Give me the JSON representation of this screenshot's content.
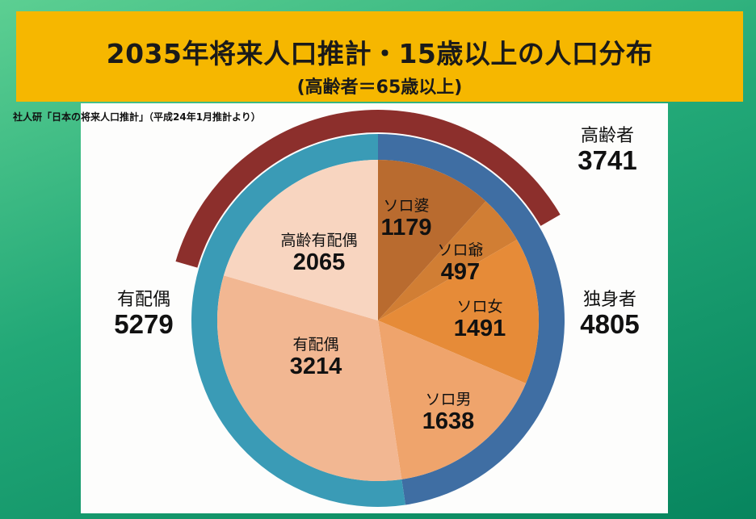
{
  "header": {
    "title": "2035年将来人口推計・15歳以上の人口分布",
    "subtitle": "(高齢者＝65歳以上)"
  },
  "source": "社人研「日本の将来人口推計」（平成24年1月推計より）",
  "chart_data": {
    "type": "pie",
    "title": "2035年将来人口推計・15歳以上の人口分布",
    "slices": [
      {
        "label": "ソロ婆",
        "value": 1179,
        "color": "#b96b2f"
      },
      {
        "label": "ソロ爺",
        "value": 497,
        "color": "#d17e34"
      },
      {
        "label": "ソロ女",
        "value": 1491,
        "color": "#e68b38"
      },
      {
        "label": "ソロ男",
        "value": 1638,
        "color": "#efa46c"
      },
      {
        "label": "有配偶",
        "value": 3214,
        "color": "#f2b792"
      },
      {
        "label": "高齢有配偶",
        "value": 2065,
        "color": "#f8d5c0"
      }
    ],
    "outer_ring": [
      {
        "label": "独身者",
        "value": 4805,
        "color": "#3f6ea3"
      },
      {
        "label": "有配偶",
        "value": 5279,
        "color": "#3a9bb6"
      }
    ],
    "elderly_arc": {
      "label": "高齢者",
      "value": 3741,
      "color": "#8c2f2c"
    }
  }
}
